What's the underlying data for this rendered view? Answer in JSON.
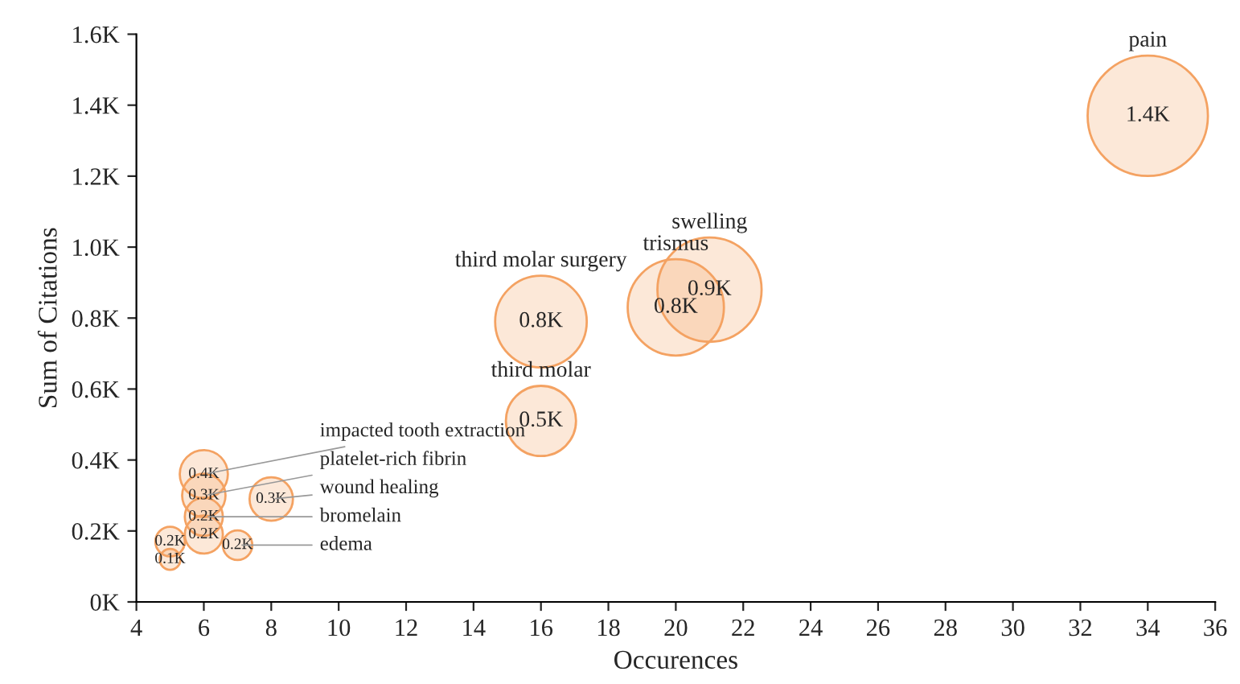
{
  "chart_data": {
    "type": "bubble",
    "xlabel": "Occurences",
    "ylabel": "Sum of Citations",
    "xlim": [
      4,
      36
    ],
    "xticks": [
      4,
      6,
      8,
      10,
      12,
      14,
      16,
      18,
      20,
      22,
      24,
      26,
      28,
      30,
      32,
      34,
      36
    ],
    "ylim": [
      0,
      1.6
    ],
    "yticks": [
      {
        "value": 0,
        "label": "0K"
      },
      {
        "value": 0.2,
        "label": "0.2K"
      },
      {
        "value": 0.4,
        "label": "0.4K"
      },
      {
        "value": 0.6,
        "label": "0.6K"
      },
      {
        "value": 0.8,
        "label": "0.8K"
      },
      {
        "value": 1.0,
        "label": "1.0K"
      },
      {
        "value": 1.2,
        "label": "1.2K"
      },
      {
        "value": 1.4,
        "label": "1.4K"
      },
      {
        "value": 1.6,
        "label": "1.6K"
      }
    ],
    "grid": false,
    "series": [
      {
        "color": "#f4a262",
        "x": [
          34,
          21,
          20,
          16,
          16,
          6,
          6,
          8,
          6,
          7,
          5,
          5,
          6
        ],
        "values": [
          1.37,
          0.88,
          0.83,
          0.79,
          0.51,
          0.36,
          0.3,
          0.29,
          0.24,
          0.16,
          0.17,
          0.12,
          0.19
        ],
        "sizes": [
          1,
          0.75,
          0.64,
          0.58,
          0.34,
          0.16,
          0.13,
          0.13,
          0.1,
          0.06,
          0.06,
          0.03,
          0.1
        ],
        "value_labels": [
          "1.4K",
          "0.9K",
          "0.8K",
          "0.8K",
          "0.5K",
          "0.4K",
          "0.3K",
          "0.3K",
          "0.2K",
          "0.2K",
          "0.2K",
          "0.1K",
          "0.2K"
        ]
      }
    ],
    "annotations": [
      {
        "text": "pain",
        "x": 34,
        "y": 1.37
      },
      {
        "text": "swelling",
        "x": 21,
        "y": 0.88
      },
      {
        "text": "trismus",
        "x": 20,
        "y": 0.83
      },
      {
        "text": "third molar surgery",
        "x": 16,
        "y": 0.79
      },
      {
        "text": "third molar",
        "x": 16,
        "y": 0.51
      },
      {
        "text": "impacted tooth extraction",
        "x": 6,
        "y": 0.36
      },
      {
        "text": "platelet-rich fibrin",
        "x": 6,
        "y": 0.3
      },
      {
        "text": "wound healing",
        "x": 8,
        "y": 0.29
      },
      {
        "text": "bromelain",
        "x": 6,
        "y": 0.24
      },
      {
        "text": "edema",
        "x": 7,
        "y": 0.16
      }
    ]
  }
}
